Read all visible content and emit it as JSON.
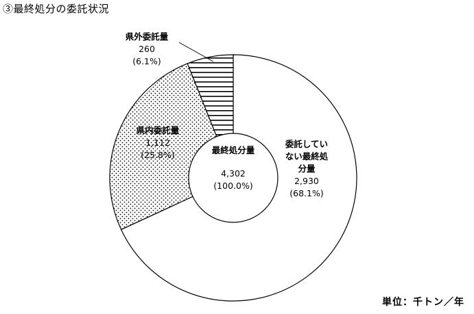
{
  "chart_data": {
    "type": "pie",
    "title": "③最終処分の委託状況",
    "unit": "単位：千トン／年",
    "center": {
      "label": "最終処分量",
      "value": "4,302",
      "percent": "(100.0%)"
    },
    "slices": [
      {
        "label_lines": [
          "委託してい",
          "ない最終処",
          "分量"
        ],
        "value": 2930,
        "value_text": "2,930",
        "percent": 68.1,
        "percent_text": "(68.1%)",
        "fill": "white"
      },
      {
        "label_lines": [
          "県内委託量"
        ],
        "value": 1112,
        "value_text": "1,112",
        "percent": 25.8,
        "percent_text": "(25.8%)",
        "fill": "dots"
      },
      {
        "label_lines": [
          "県外委託量"
        ],
        "value": 260,
        "value_text": "260",
        "percent": 6.1,
        "percent_text": "(6.1%)",
        "fill": "horizontal-stripes"
      }
    ]
  }
}
